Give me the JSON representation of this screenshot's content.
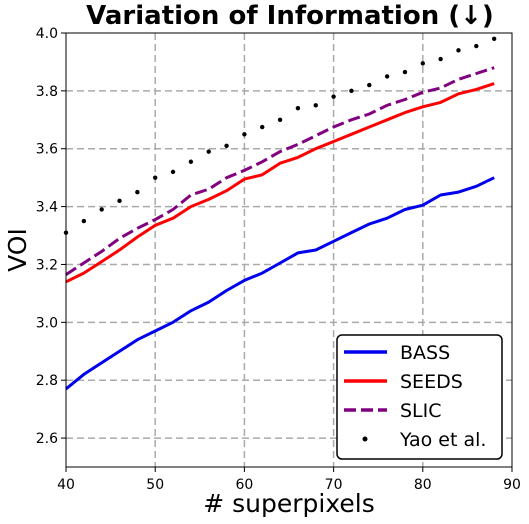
{
  "chart_data": {
    "type": "line",
    "title": "Variation of Information (↓)",
    "xlabel": "# superpixels",
    "ylabel": "VOI",
    "xlim": [
      40,
      90
    ],
    "ylim": [
      2.5,
      4.0
    ],
    "xticks": [
      "40",
      "50",
      "60",
      "70",
      "80",
      "90"
    ],
    "yticks": [
      "2.6",
      "2.8",
      "3.0",
      "3.2",
      "3.4",
      "3.6",
      "3.8",
      "4.0"
    ],
    "grid": true,
    "legend_position": "bottom-right",
    "series": [
      {
        "name": "BASS",
        "style": "solid",
        "color": "#0000ee",
        "x": [
          40,
          42,
          44,
          46,
          48,
          50,
          52,
          54,
          56,
          58,
          60,
          62,
          64,
          66,
          68,
          70,
          72,
          74,
          76,
          78,
          80,
          82,
          84,
          86,
          88
        ],
        "y": [
          2.77,
          2.82,
          2.86,
          2.9,
          2.94,
          2.97,
          3.0,
          3.04,
          3.07,
          3.11,
          3.145,
          3.17,
          3.205,
          3.24,
          3.25,
          3.28,
          3.31,
          3.34,
          3.36,
          3.39,
          3.405,
          3.44,
          3.45,
          3.47,
          3.5
        ]
      },
      {
        "name": "SEEDS",
        "style": "solid",
        "color": "#ff0000",
        "x": [
          40,
          42,
          44,
          46,
          48,
          50,
          52,
          54,
          56,
          58,
          60,
          62,
          64,
          66,
          68,
          70,
          72,
          74,
          76,
          78,
          80,
          82,
          84,
          86,
          88
        ],
        "y": [
          3.14,
          3.17,
          3.21,
          3.25,
          3.295,
          3.335,
          3.36,
          3.4,
          3.425,
          3.455,
          3.495,
          3.51,
          3.55,
          3.57,
          3.6,
          3.625,
          3.65,
          3.675,
          3.7,
          3.725,
          3.745,
          3.76,
          3.79,
          3.805,
          3.825
        ]
      },
      {
        "name": "SLIC",
        "style": "dashed",
        "color": "#800080",
        "x": [
          40,
          42,
          44,
          46,
          48,
          50,
          52,
          54,
          56,
          58,
          60,
          62,
          64,
          66,
          68,
          70,
          72,
          74,
          76,
          78,
          80,
          82,
          84,
          86,
          88
        ],
        "y": [
          3.165,
          3.205,
          3.245,
          3.29,
          3.325,
          3.355,
          3.39,
          3.44,
          3.46,
          3.5,
          3.525,
          3.555,
          3.59,
          3.615,
          3.645,
          3.675,
          3.7,
          3.72,
          3.75,
          3.77,
          3.795,
          3.81,
          3.84,
          3.86,
          3.88
        ]
      },
      {
        "name": "Yao et al.",
        "style": "dotted",
        "color": "#000000",
        "x": [
          40,
          42,
          44,
          46,
          48,
          50,
          52,
          54,
          56,
          58,
          60,
          62,
          64,
          66,
          68,
          70,
          72,
          74,
          76,
          78,
          80,
          82,
          84,
          86,
          88
        ],
        "y": [
          3.31,
          3.35,
          3.39,
          3.42,
          3.45,
          3.5,
          3.52,
          3.555,
          3.59,
          3.61,
          3.65,
          3.675,
          3.7,
          3.74,
          3.75,
          3.78,
          3.8,
          3.82,
          3.85,
          3.865,
          3.895,
          3.91,
          3.94,
          3.955,
          3.98
        ]
      }
    ]
  }
}
